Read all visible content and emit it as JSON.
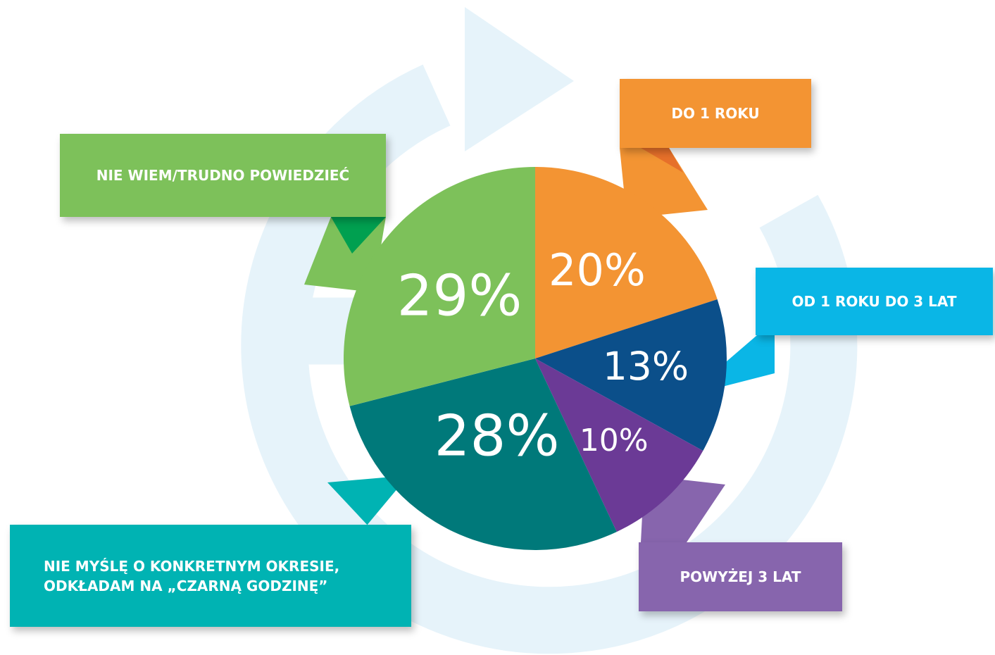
{
  "chart_data": {
    "type": "pie",
    "categories": [
      "DO 1 ROKU",
      "OD 1 ROKU DO 3 LAT",
      "POWYŻEJ 3 LAT",
      "NIE MYŚLĘ O KONKRETNYM OKRESIE, ODKŁADAM NA  „CZARNĄ GODZINĘ”",
      "NIE WIEM/TRUDNO POWIEDZIEĆ"
    ],
    "values": [
      20,
      13,
      10,
      28,
      29
    ],
    "value_labels": [
      "20%",
      "13%",
      "10%",
      "28%",
      "29%"
    ],
    "colors": [
      "#f39433",
      "#0b4f8a",
      "#6b3a96",
      "#00797a",
      "#7dc15a"
    ]
  }
}
